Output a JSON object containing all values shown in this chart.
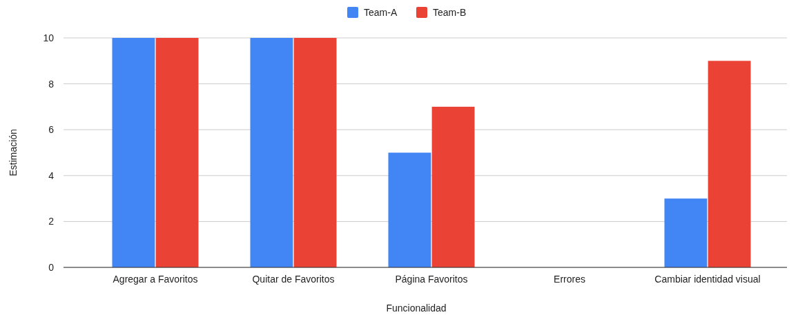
{
  "chart_data": {
    "type": "bar",
    "xlabel": "Funcionalidad",
    "ylabel": "Estimación",
    "categories": [
      "Agregar a Favoritos",
      "Quitar de Favoritos",
      "Página Favoritos",
      "Errores",
      "Cambiar identidad visual"
    ],
    "series": [
      {
        "name": "Team-A",
        "color": "#4285f4",
        "values": [
          10,
          10,
          5,
          0,
          3
        ]
      },
      {
        "name": "Team-B",
        "color": "#ea4335",
        "values": [
          10,
          10,
          7,
          0,
          9
        ]
      }
    ],
    "ylim": [
      0,
      10
    ],
    "yticks": [
      0,
      2,
      4,
      6,
      8,
      10
    ],
    "grid": "y",
    "legend": "top"
  }
}
